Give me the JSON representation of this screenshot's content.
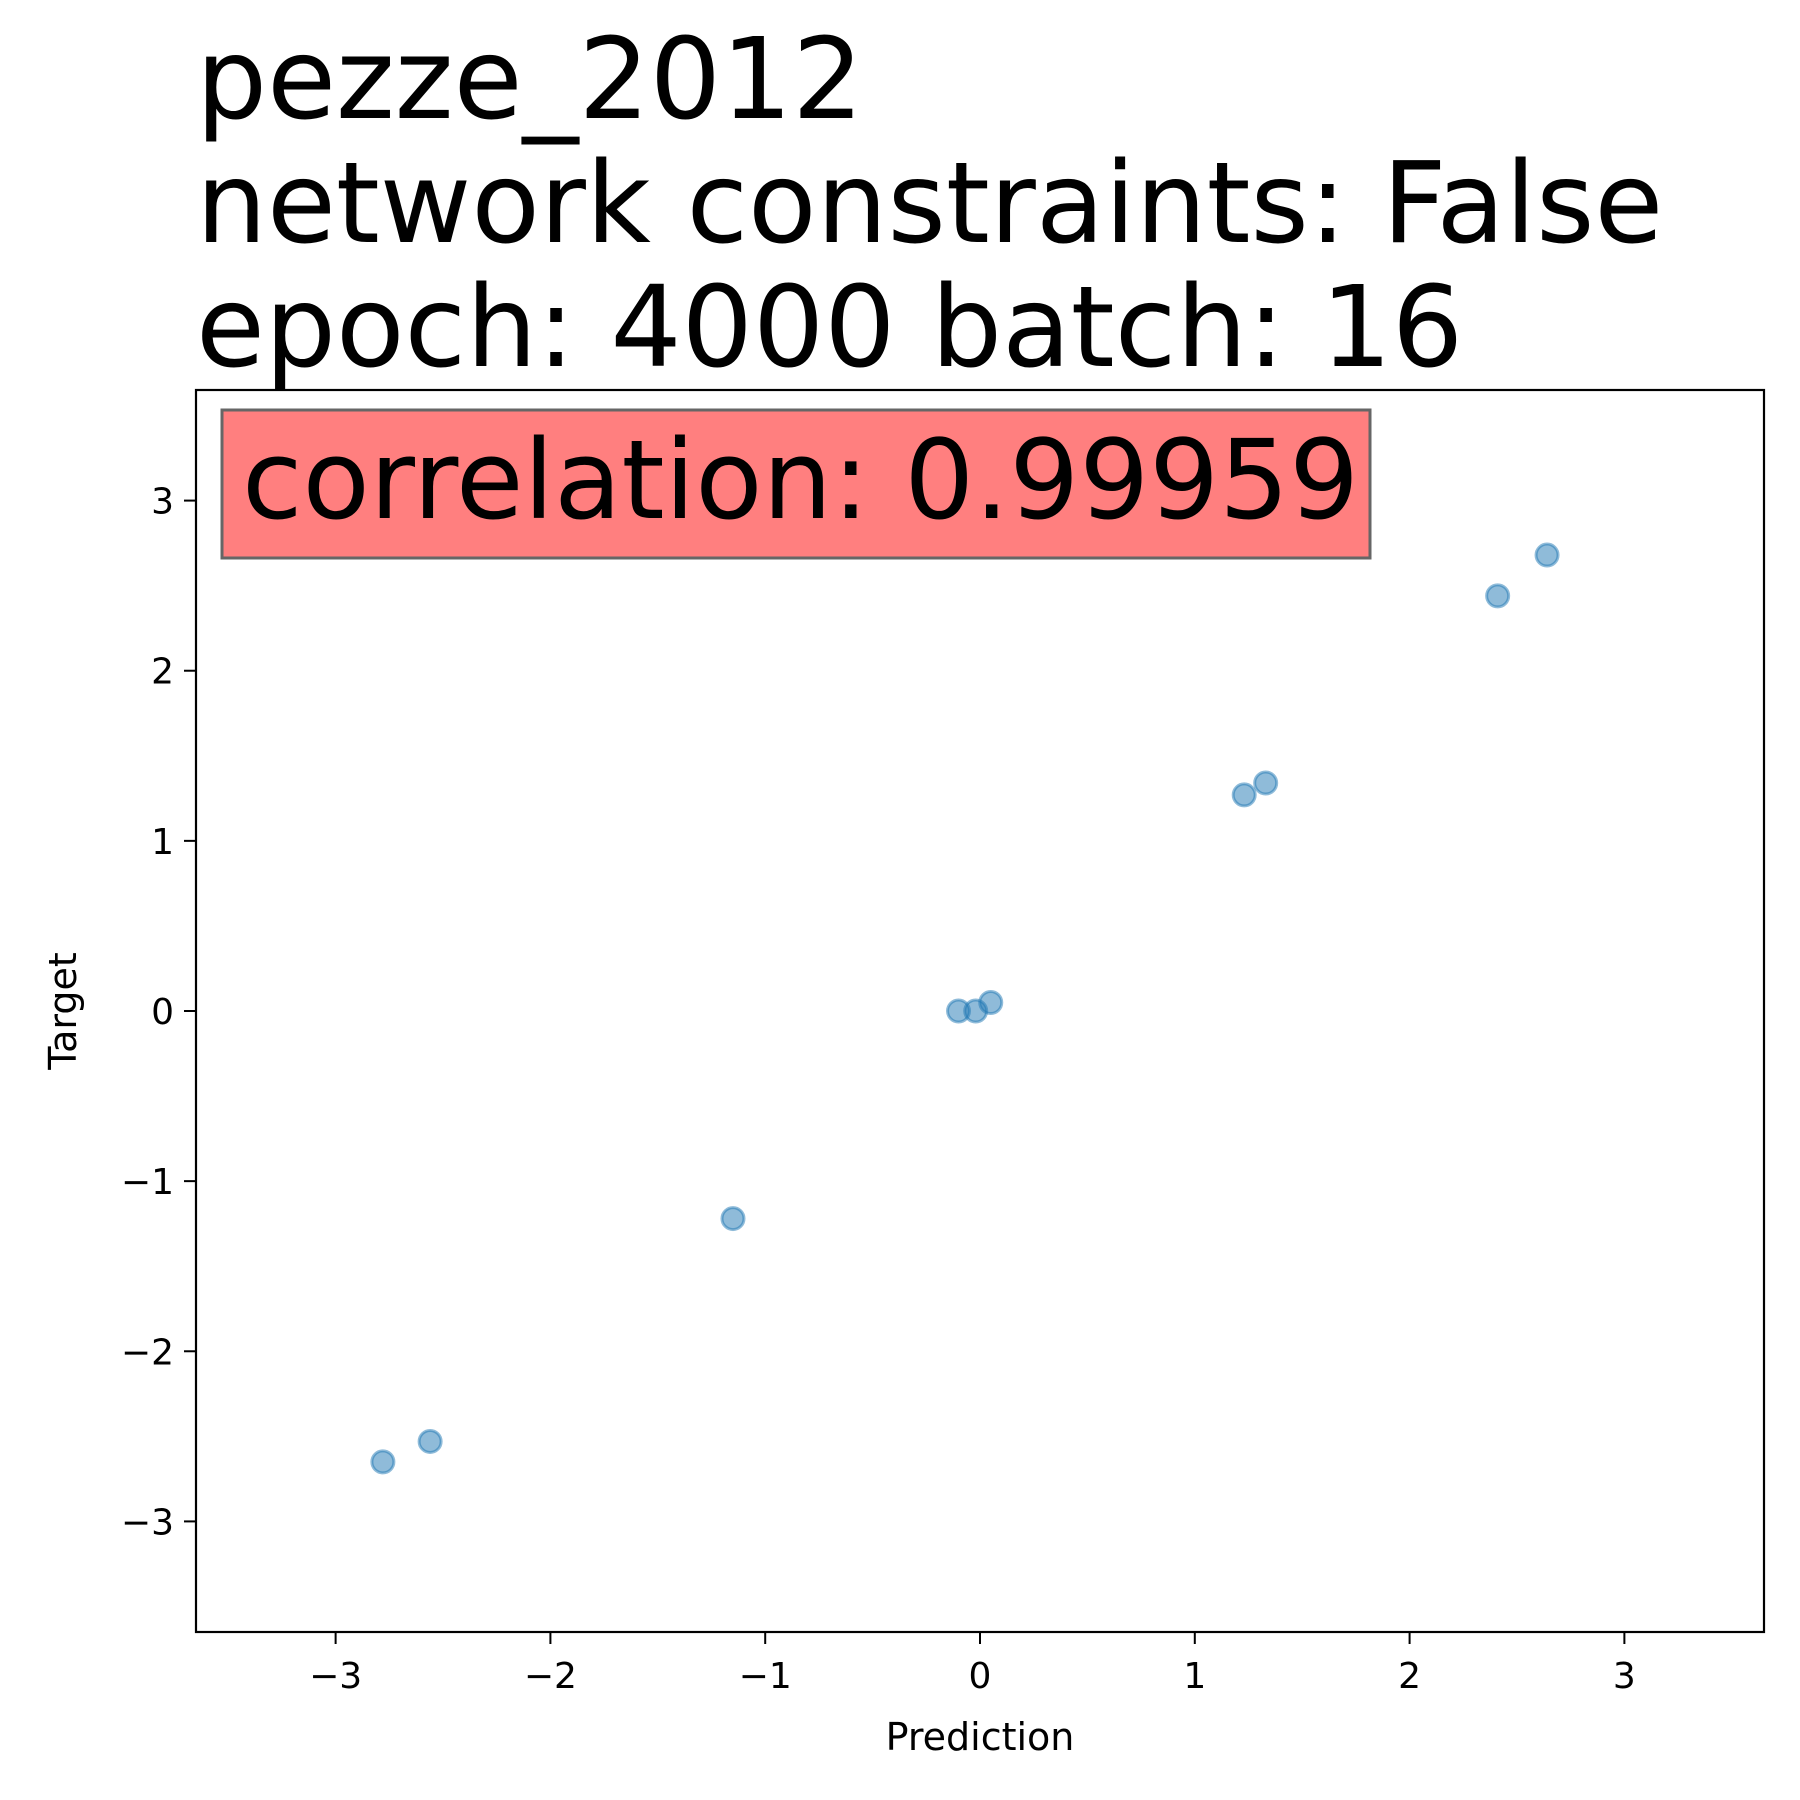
{
  "title_lines": [
    "pezze_2012",
    "network constraints: False",
    "epoch: 4000 batch: 16"
  ],
  "annotation": {
    "text": "correlation: 0.99959",
    "box_color": "#ff7f7f",
    "edge_color": "#666666"
  },
  "chart_data": {
    "type": "scatter",
    "xlabel": "Prediction",
    "ylabel": "Target",
    "xlim": [
      -3.65,
      3.65
    ],
    "ylim": [
      -3.65,
      3.65
    ],
    "xticks": [
      -3,
      -2,
      -1,
      0,
      1,
      2,
      3
    ],
    "yticks": [
      -3,
      -2,
      -1,
      0,
      1,
      2,
      3
    ],
    "xtick_labels": [
      "−3",
      "−2",
      "−1",
      "0",
      "1",
      "2",
      "3"
    ],
    "ytick_labels": [
      "−3",
      "−2",
      "−1",
      "0",
      "1",
      "2",
      "3"
    ],
    "grid": false,
    "marker_color": "#1f77b4",
    "marker_alpha": 0.5,
    "points": [
      {
        "x": -2.78,
        "y": -2.65
      },
      {
        "x": -2.56,
        "y": -2.53
      },
      {
        "x": -1.15,
        "y": -1.22
      },
      {
        "x": -0.1,
        "y": 0.0
      },
      {
        "x": -0.02,
        "y": 0.0
      },
      {
        "x": 0.05,
        "y": 0.05
      },
      {
        "x": 1.23,
        "y": 1.27
      },
      {
        "x": 1.33,
        "y": 1.34
      },
      {
        "x": 2.41,
        "y": 2.44
      },
      {
        "x": 2.64,
        "y": 2.68
      }
    ]
  }
}
